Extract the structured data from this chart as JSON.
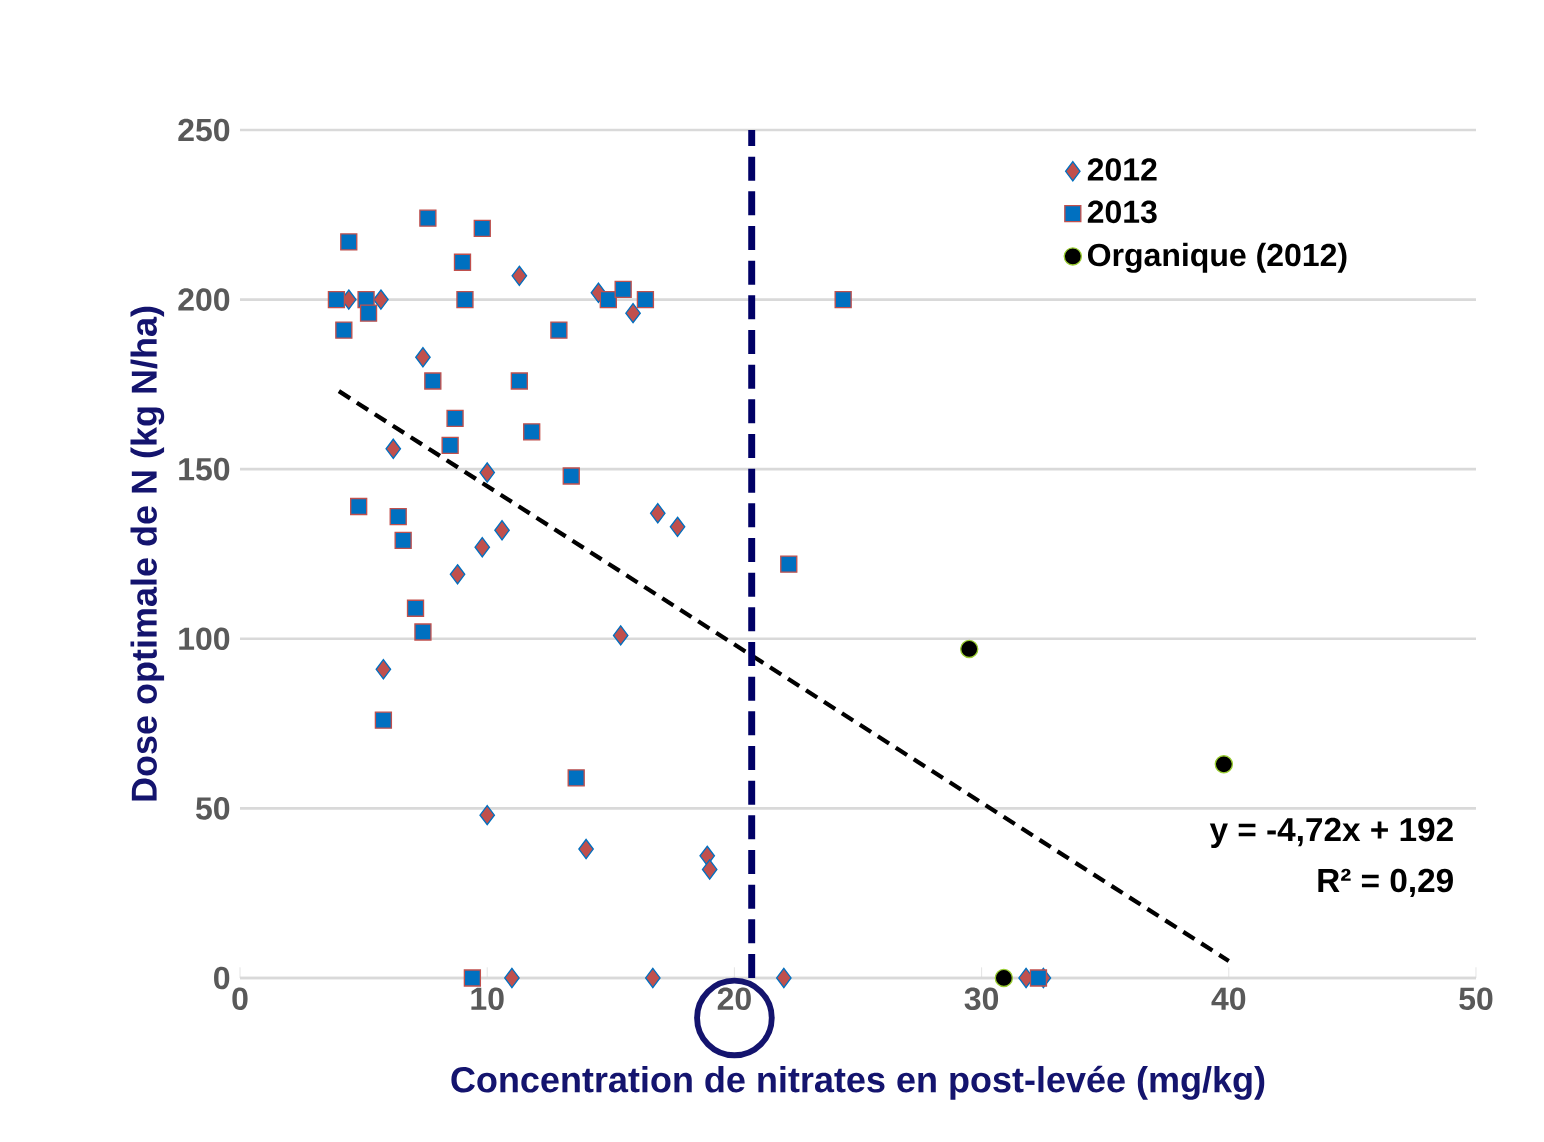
{
  "chart_data": {
    "type": "scatter",
    "xlabel": "Concentration de nitrates en post-levée (mg/kg)",
    "ylabel": "Dose optimale de N (kg N/ha)",
    "xlim": [
      0,
      50
    ],
    "ylim": [
      0,
      250
    ],
    "xticks": [
      0,
      10,
      20,
      30,
      40,
      50
    ],
    "yticks": [
      0,
      50,
      100,
      150,
      200,
      250
    ],
    "grid": "y",
    "legend": "top right",
    "series": [
      {
        "name": "2012",
        "color": "#c0504d",
        "marker": "diamond",
        "x": [
          4.4,
          5.7,
          11.3,
          14.5,
          15.9,
          7.4,
          6.2,
          10.0,
          16.9,
          17.7,
          10.6,
          9.8,
          8.8,
          5.8,
          15.4,
          10.0,
          14.0,
          18.9,
          19.0,
          11.0,
          16.7,
          22.0,
          31.8,
          32.5
        ],
        "values": [
          200,
          200,
          207,
          202,
          196,
          183,
          156,
          149,
          137,
          133,
          132,
          127,
          119,
          91,
          101,
          48,
          38,
          36,
          32,
          0,
          0,
          0,
          0,
          0
        ]
      },
      {
        "name": "2013",
        "color": "#0070c0",
        "marker": "square",
        "x": [
          4.4,
          7.6,
          9.8,
          9.0,
          3.9,
          5.1,
          5.2,
          4.2,
          9.1,
          14.9,
          15.5,
          16.4,
          12.9,
          7.8,
          11.3,
          8.7,
          11.8,
          8.5,
          13.4,
          4.8,
          6.4,
          6.6,
          7.1,
          7.4,
          5.8,
          13.6,
          9.4,
          24.4,
          22.2,
          32.3
        ],
        "values": [
          217,
          224,
          221,
          211,
          200,
          200,
          196,
          191,
          200,
          200,
          203,
          200,
          191,
          176,
          176,
          165,
          161,
          157,
          148,
          139,
          136,
          129,
          109,
          102,
          76,
          59,
          0,
          200,
          122,
          0
        ]
      },
      {
        "name": "Organique (2012)",
        "color": "#000000",
        "marker": "circle",
        "x": [
          29.5,
          39.8,
          30.9
        ],
        "values": [
          97,
          63,
          0
        ]
      },
      {
        "type": "line",
        "color": "#000000",
        "marker": "none",
        "line_style": "dashed",
        "x": [
          4,
          40
        ],
        "values": [
          173,
          5
        ]
      }
    ],
    "ref_lines": [
      {
        "axis": "x",
        "value": 20.7,
        "color": "#000066",
        "line_style": "dashed"
      }
    ],
    "annotations": [
      "y = -4,72x + 192",
      "R² = 0,29"
    ]
  }
}
